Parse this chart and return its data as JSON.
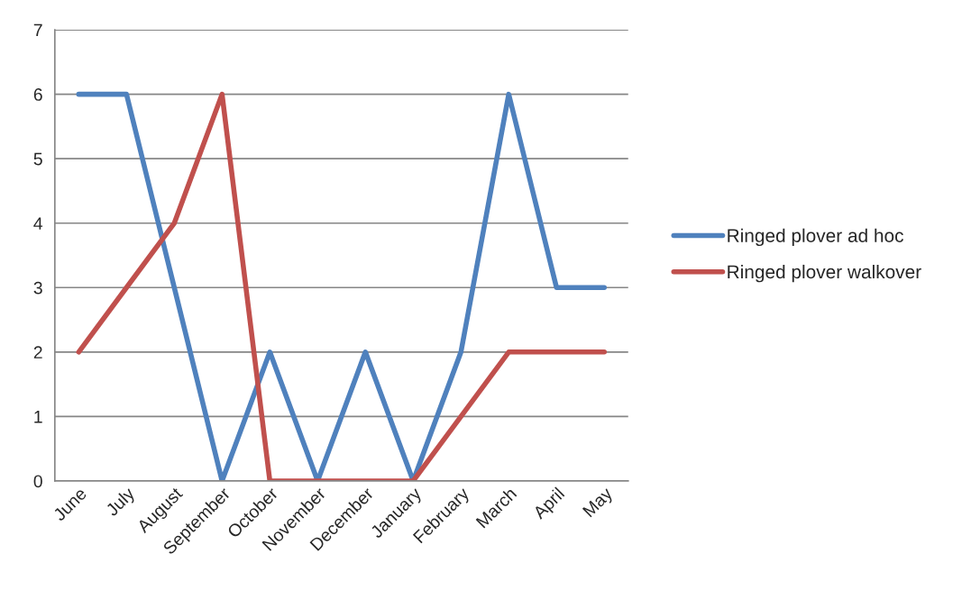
{
  "chart_data": {
    "type": "line",
    "categories": [
      "June",
      "July",
      "August",
      "September",
      "October",
      "November",
      "December",
      "January",
      "February",
      "March",
      "April",
      "May"
    ],
    "series": [
      {
        "name": "Ringed plover ad hoc",
        "color": "#4f81bd",
        "values": [
          6,
          6,
          3,
          0,
          2,
          0,
          2,
          0,
          2,
          6,
          3,
          3
        ]
      },
      {
        "name": "Ringed plover walkover",
        "color": "#c0504d",
        "values": [
          2,
          3,
          4,
          6,
          0,
          0,
          0,
          0,
          1,
          2,
          2,
          2
        ]
      }
    ],
    "ylim": [
      0,
      7
    ],
    "yticks": [
      0,
      1,
      2,
      3,
      4,
      5,
      6,
      7
    ],
    "grid": "y",
    "legend": "right",
    "marker": "none",
    "line_style": "solid"
  }
}
